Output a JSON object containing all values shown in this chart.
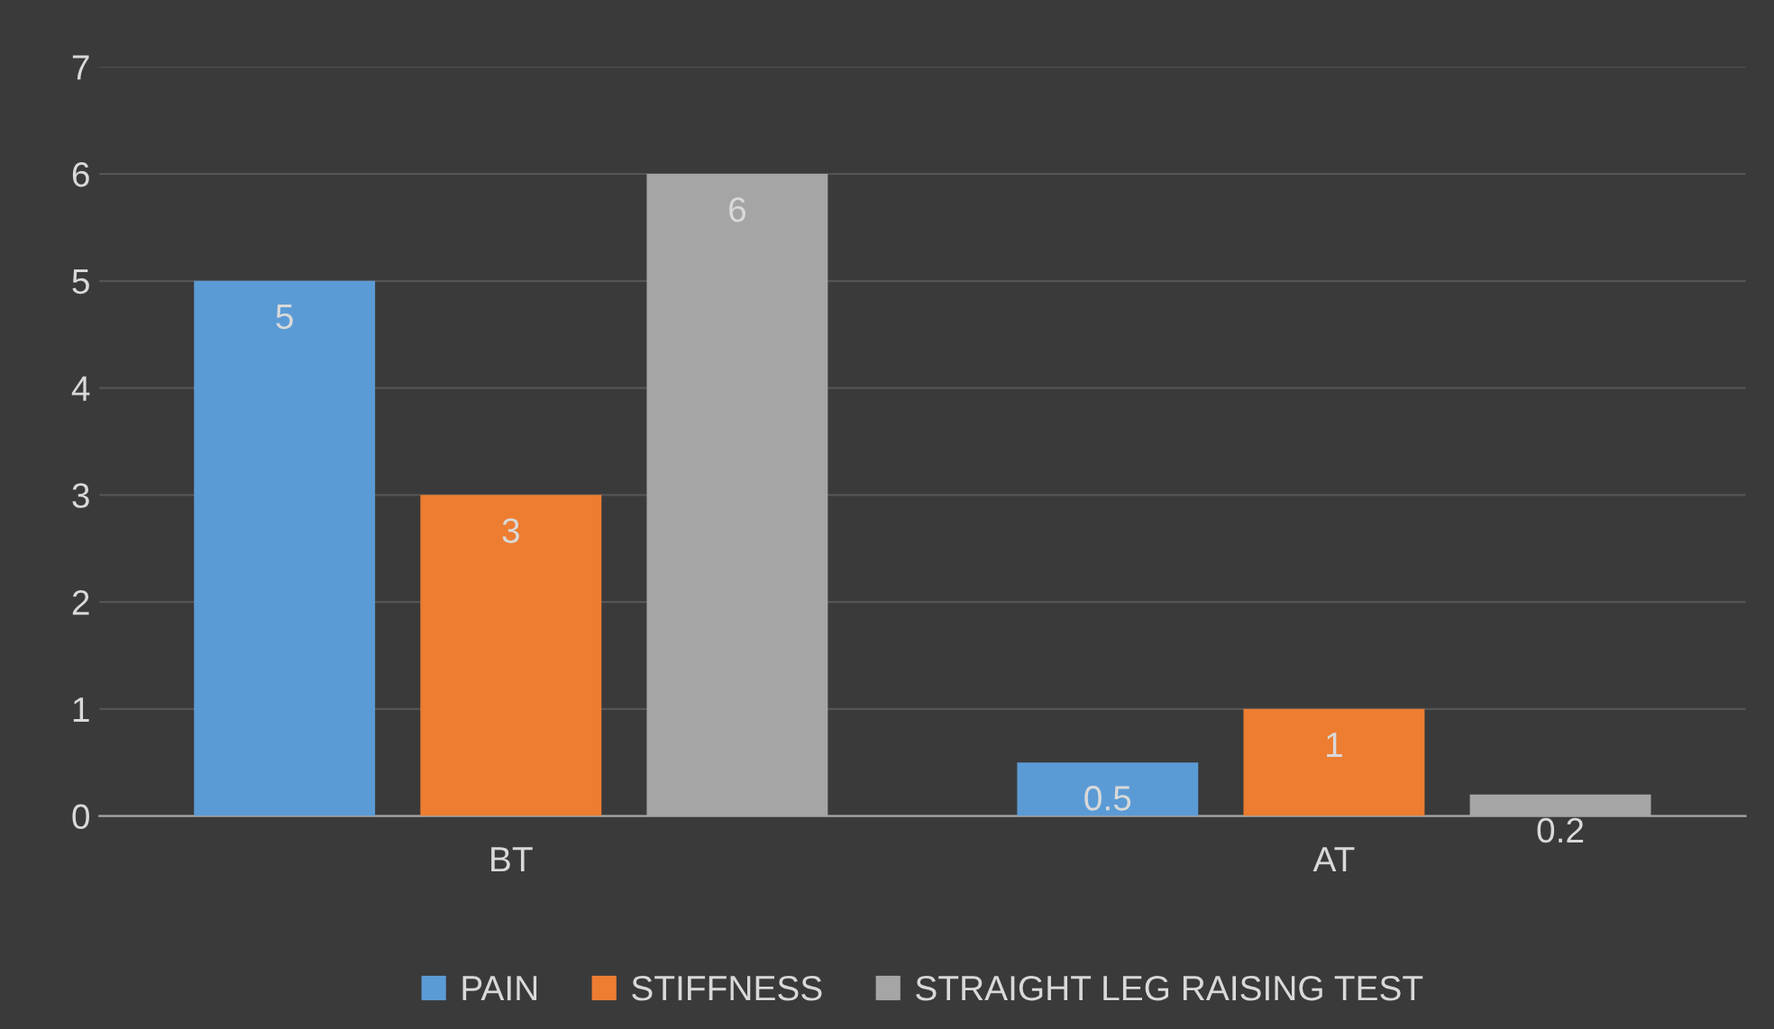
{
  "chart_data": {
    "type": "bar",
    "categories": [
      "BT",
      "AT"
    ],
    "series": [
      {
        "name": "PAIN",
        "color": "#5b9bd5",
        "values": [
          5,
          0.5
        ]
      },
      {
        "name": "STIFFNESS",
        "color": "#ed7d31",
        "values": [
          3,
          1
        ]
      },
      {
        "name": "STRAIGHT LEG RAISING TEST",
        "color": "#a5a5a5",
        "values": [
          6,
          0.2
        ]
      }
    ],
    "ylim": [
      0,
      7
    ],
    "yticks": [
      0,
      1,
      2,
      3,
      4,
      5,
      6,
      7
    ],
    "grid": "y",
    "legend": "bottom",
    "data_labels": true
  }
}
